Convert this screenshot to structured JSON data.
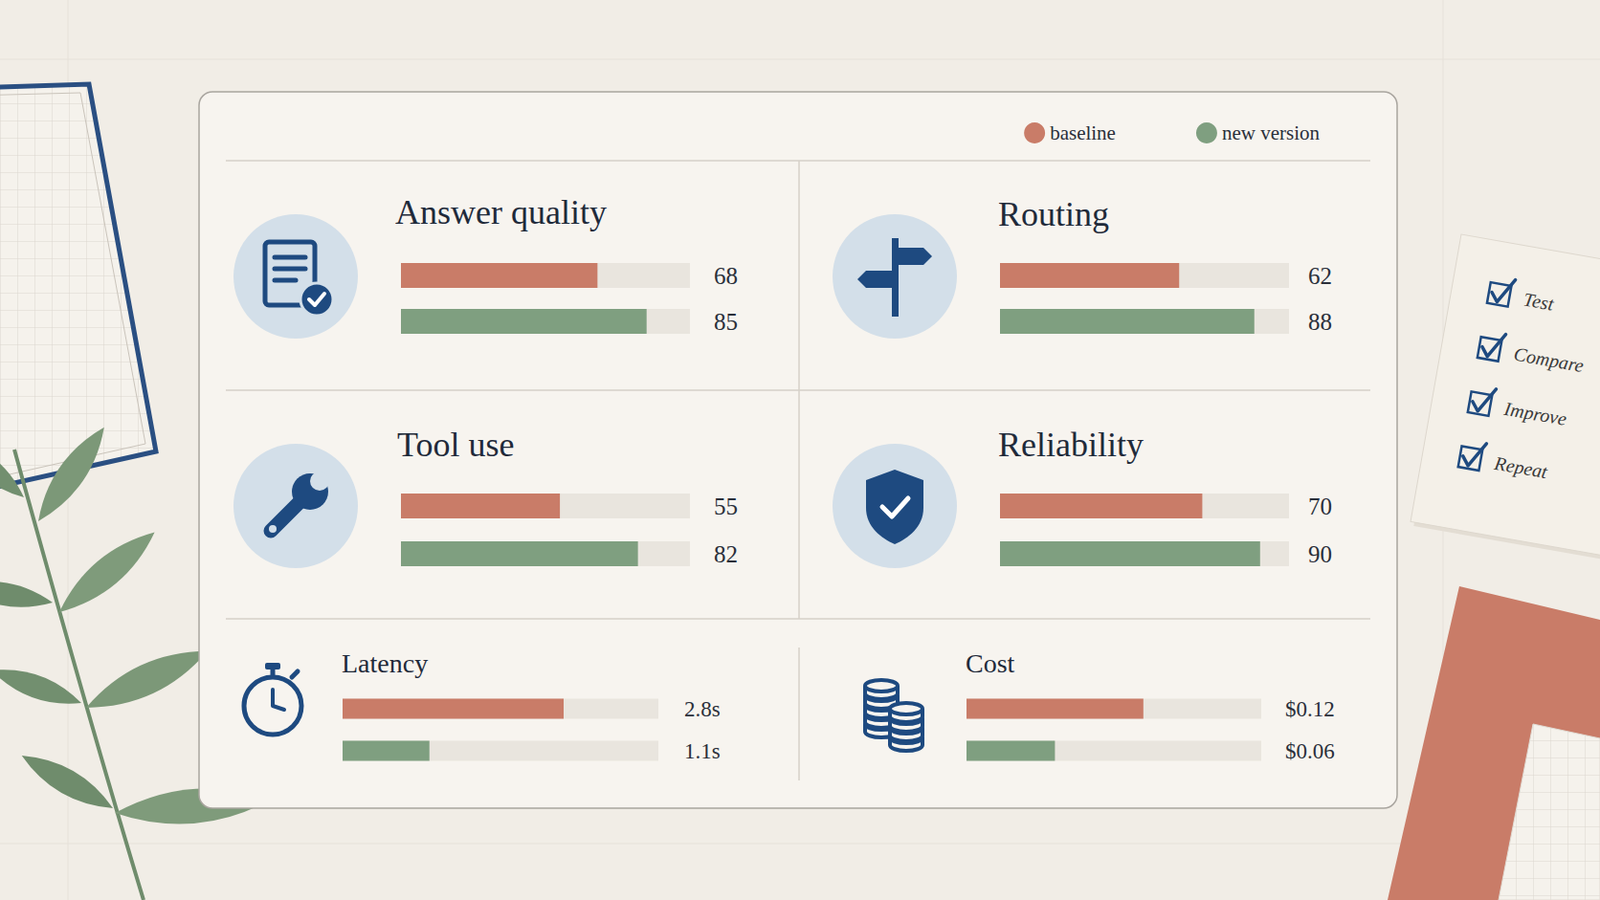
{
  "chart_data": [
    {
      "type": "bar",
      "orientation": "horizontal",
      "title": "Answer quality",
      "categories": [
        null
      ],
      "series": [
        {
          "name": "baseline",
          "color": "#c97c68",
          "values": [
            68
          ]
        },
        {
          "name": "new version",
          "color": "#7f9f80",
          "values": [
            85
          ]
        }
      ],
      "xlim": [
        0,
        100
      ],
      "data_labels": true,
      "tick_labels": false,
      "grid": false,
      "legend": "top-right"
    },
    {
      "type": "bar",
      "orientation": "horizontal",
      "title": "Routing",
      "categories": [
        null
      ],
      "series": [
        {
          "name": "baseline",
          "color": "#c97c68",
          "values": [
            62
          ]
        },
        {
          "name": "new version",
          "color": "#7f9f80",
          "values": [
            88
          ]
        }
      ],
      "xlim": [
        0,
        100
      ],
      "data_labels": true,
      "tick_labels": false,
      "grid": false
    },
    {
      "type": "bar",
      "orientation": "horizontal",
      "title": "Tool use",
      "categories": [
        null
      ],
      "series": [
        {
          "name": "baseline",
          "color": "#c97c68",
          "values": [
            55
          ]
        },
        {
          "name": "new version",
          "color": "#7f9f80",
          "values": [
            82
          ]
        }
      ],
      "xlim": [
        0,
        100
      ],
      "data_labels": true,
      "tick_labels": false,
      "grid": false
    },
    {
      "type": "bar",
      "orientation": "horizontal",
      "title": "Reliability",
      "categories": [
        null
      ],
      "series": [
        {
          "name": "baseline",
          "color": "#c97c68",
          "values": [
            70
          ]
        },
        {
          "name": "new version",
          "color": "#7f9f80",
          "values": [
            90
          ]
        }
      ],
      "xlim": [
        0,
        100
      ],
      "data_labels": true,
      "tick_labels": false,
      "grid": false
    },
    {
      "type": "bar",
      "orientation": "horizontal",
      "title": "Latency",
      "categories": [
        null
      ],
      "series": [
        {
          "name": "baseline",
          "color": "#c97c68",
          "values": [
            2.8
          ],
          "value_labels": [
            "2.8s"
          ]
        },
        {
          "name": "new version",
          "color": "#7f9f80",
          "values": [
            1.1
          ],
          "value_labels": [
            "1.1s"
          ]
        }
      ],
      "xlim": [
        0,
        4
      ],
      "data_labels": true,
      "tick_labels": false,
      "grid": false
    },
    {
      "type": "bar",
      "orientation": "horizontal",
      "title": "Cost",
      "categories": [
        null
      ],
      "series": [
        {
          "name": "baseline",
          "color": "#c97c68",
          "values": [
            0.12
          ],
          "value_labels": [
            "$0.12"
          ]
        },
        {
          "name": "new version",
          "color": "#7f9f80",
          "values": [
            0.06
          ],
          "value_labels": [
            "$0.06"
          ]
        }
      ],
      "xlim": [
        0,
        0.2
      ],
      "data_labels": true,
      "tick_labels": false,
      "grid": false
    }
  ],
  "note": {
    "items": [
      "Test",
      "Compare",
      "Improve",
      "Repeat"
    ]
  }
}
